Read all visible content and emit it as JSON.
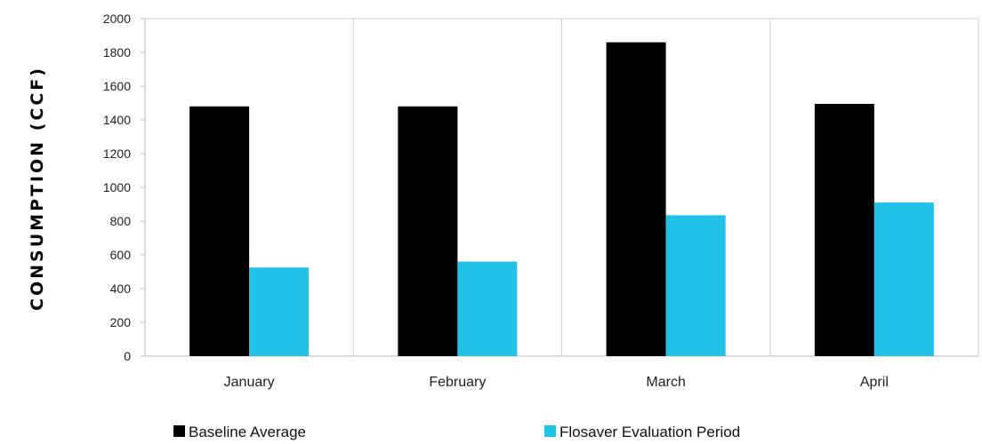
{
  "chart_data": {
    "type": "bar",
    "title": "",
    "xlabel": "",
    "ylabel": "CONSUMPTION (CCF)",
    "categories": [
      "January",
      "February",
      "March",
      "April"
    ],
    "series": [
      {
        "name": "Baseline Average",
        "color": "#000000",
        "values": [
          1480,
          1480,
          1860,
          1495
        ]
      },
      {
        "name": "Flosaver Evaluation Period",
        "color": "#22c1e8",
        "values": [
          525,
          560,
          835,
          910
        ]
      }
    ],
    "ylim": [
      0,
      2000
    ],
    "yticks": [
      0,
      200,
      400,
      600,
      800,
      1000,
      1200,
      1400,
      1600,
      1800,
      2000
    ],
    "grid": "vertical-category-separators",
    "legend_position": "bottom"
  }
}
